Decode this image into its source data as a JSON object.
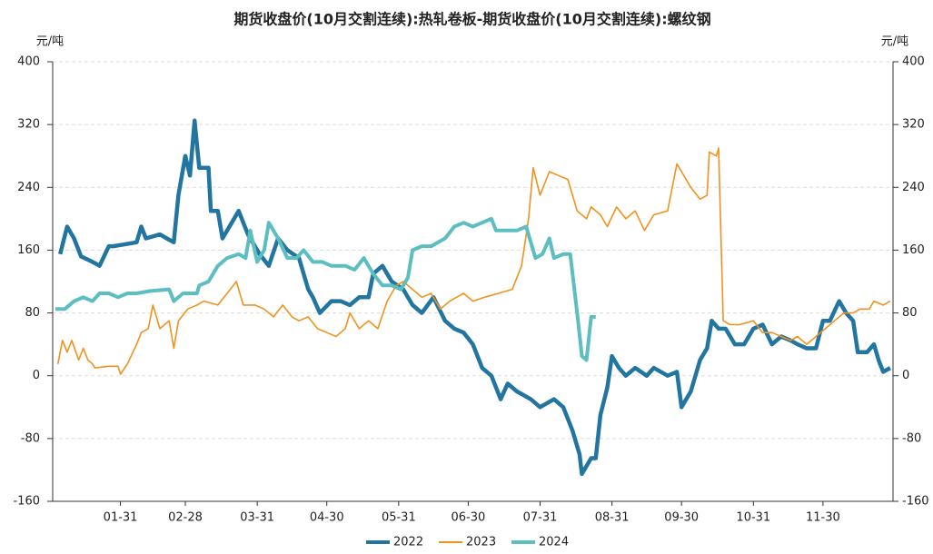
{
  "chart_data": {
    "type": "line",
    "title": "期货收盘价(10月交割连续):热轧卷板-期货收盘价(10月交割连续):螺纹钢",
    "ylabel": "元/吨",
    "y2label": "元/吨",
    "xlim": [
      1,
      365
    ],
    "xticks": [
      {
        "value": 31,
        "label": "01-31"
      },
      {
        "value": 59,
        "label": "02-28"
      },
      {
        "value": 90,
        "label": "03-31"
      },
      {
        "value": 120,
        "label": "04-30"
      },
      {
        "value": 151,
        "label": "05-31"
      },
      {
        "value": 181,
        "label": "06-30"
      },
      {
        "value": 212,
        "label": "07-31"
      },
      {
        "value": 243,
        "label": "08-31"
      },
      {
        "value": 273,
        "label": "09-30"
      },
      {
        "value": 304,
        "label": "10-31"
      },
      {
        "value": 334,
        "label": "11-30"
      }
    ],
    "ylim": [
      -160,
      400
    ],
    "yticks": [
      -160,
      -80,
      0,
      80,
      160,
      240,
      320,
      400
    ],
    "y2lim": [
      -160,
      400
    ],
    "y2ticks": [
      -160,
      -80,
      0,
      80,
      160,
      240,
      320,
      400
    ],
    "grid": true,
    "legend": "bottom",
    "series": [
      {
        "name": "2022",
        "color": "#2275a0",
        "x": [
          5,
          8,
          11,
          14,
          19,
          22,
          26,
          28,
          38,
          40,
          42,
          48,
          51,
          54,
          56,
          59,
          61,
          63,
          65,
          69,
          70,
          73,
          75,
          79,
          82,
          86,
          91,
          95,
          99,
          103,
          108,
          112,
          114,
          117,
          122,
          126,
          130,
          134,
          138,
          140,
          144,
          148,
          153,
          157,
          161,
          166,
          171,
          175,
          179,
          183,
          187,
          191,
          195,
          198,
          202,
          208,
          212,
          218,
          222,
          226,
          229,
          230,
          234,
          236,
          238,
          241,
          243,
          246,
          249,
          253,
          258,
          261,
          267,
          271,
          273,
          277,
          281,
          284,
          286,
          289,
          292,
          296,
          300,
          304,
          308,
          312,
          316,
          320,
          323,
          327,
          331,
          334,
          337,
          341,
          344,
          347,
          349,
          353,
          356,
          358,
          360,
          363
        ],
        "values": [
          155,
          190,
          175,
          152,
          145,
          140,
          165,
          165,
          170,
          190,
          175,
          180,
          175,
          170,
          230,
          280,
          255,
          325,
          265,
          265,
          210,
          210,
          175,
          195,
          210,
          180,
          155,
          140,
          175,
          160,
          150,
          110,
          100,
          80,
          95,
          95,
          90,
          100,
          100,
          130,
          140,
          120,
          110,
          90,
          80,
          100,
          70,
          60,
          55,
          40,
          10,
          0,
          -30,
          -10,
          -20,
          -30,
          -40,
          -30,
          -40,
          -70,
          -100,
          -125,
          -105,
          -105,
          -50,
          -15,
          25,
          10,
          0,
          10,
          0,
          10,
          0,
          5,
          -40,
          -20,
          20,
          35,
          70,
          60,
          60,
          40,
          40,
          60,
          65,
          40,
          50,
          45,
          40,
          35,
          35,
          70,
          70,
          95,
          80,
          70,
          30,
          30,
          40,
          20,
          5,
          10
        ]
      },
      {
        "name": "2023",
        "color": "#f0921e",
        "x": [
          4,
          6,
          8,
          10,
          13,
          15,
          17,
          19,
          20,
          26,
          30,
          31,
          34,
          38,
          40,
          43,
          45,
          48,
          52,
          54,
          56,
          60,
          64,
          67,
          73,
          77,
          81,
          84,
          89,
          93,
          97,
          101,
          105,
          108,
          112,
          116,
          120,
          124,
          128,
          130,
          134,
          138,
          142,
          146,
          150,
          153,
          157,
          161,
          165,
          169,
          173,
          179,
          183,
          188,
          194,
          200,
          204,
          207,
          209,
          212,
          216,
          220,
          224,
          228,
          232,
          234,
          238,
          241,
          245,
          249,
          253,
          257,
          261,
          267,
          271,
          277,
          281,
          284,
          285,
          288,
          289,
          291,
          294,
          298,
          304,
          308,
          312,
          316,
          320,
          323,
          327,
          331,
          335,
          339,
          343,
          347,
          350,
          354,
          356,
          360,
          363
        ],
        "values": [
          15,
          45,
          30,
          45,
          20,
          35,
          20,
          15,
          10,
          12,
          12,
          2,
          15,
          40,
          55,
          60,
          90,
          60,
          70,
          35,
          70,
          85,
          90,
          95,
          90,
          105,
          120,
          90,
          90,
          85,
          75,
          90,
          75,
          70,
          75,
          60,
          55,
          50,
          60,
          80,
          60,
          70,
          60,
          95,
          115,
          120,
          110,
          100,
          105,
          85,
          95,
          105,
          95,
          100,
          105,
          110,
          140,
          200,
          265,
          230,
          260,
          255,
          250,
          210,
          200,
          215,
          205,
          190,
          215,
          200,
          210,
          185,
          205,
          210,
          270,
          240,
          225,
          230,
          285,
          280,
          290,
          70,
          65,
          65,
          70,
          55,
          55,
          50,
          45,
          50,
          40,
          50,
          60,
          70,
          80,
          80,
          85,
          85,
          95,
          90,
          95
        ]
      },
      {
        "name": "2024",
        "color": "#5cbec0",
        "x": [
          3,
          7,
          11,
          15,
          19,
          22,
          26,
          30,
          34,
          38,
          44,
          52,
          54,
          58,
          64,
          65,
          69,
          73,
          77,
          82,
          85,
          87,
          90,
          93,
          95,
          99,
          103,
          107,
          110,
          114,
          118,
          122,
          128,
          132,
          136,
          140,
          144,
          148,
          152,
          155,
          157,
          161,
          165,
          171,
          175,
          179,
          183,
          187,
          191,
          193,
          196,
          202,
          206,
          210,
          213,
          216,
          218,
          222,
          225,
          228,
          230,
          232,
          234,
          236
        ],
        "values": [
          85,
          85,
          95,
          100,
          95,
          105,
          105,
          100,
          105,
          105,
          108,
          110,
          95,
          105,
          105,
          115,
          120,
          140,
          150,
          155,
          150,
          185,
          145,
          160,
          195,
          175,
          150,
          150,
          160,
          145,
          145,
          140,
          140,
          135,
          150,
          130,
          115,
          115,
          110,
          125,
          160,
          165,
          165,
          175,
          190,
          195,
          190,
          195,
          200,
          185,
          185,
          185,
          190,
          150,
          155,
          175,
          150,
          155,
          155,
          80,
          25,
          20,
          75,
          75
        ]
      }
    ]
  }
}
